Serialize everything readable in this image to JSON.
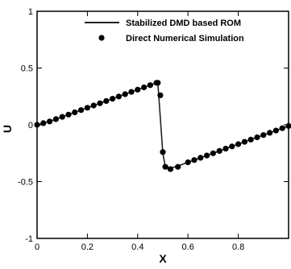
{
  "chart_data": {
    "type": "line",
    "title": "",
    "xlabel": "X",
    "ylabel": "U",
    "xlim": [
      0,
      1
    ],
    "ylim": [
      -1,
      1
    ],
    "x_ticks": [
      0,
      0.2,
      0.4,
      0.6,
      0.8
    ],
    "x_tick_labels": [
      "0",
      "0.2",
      "0.4",
      "0.6",
      "0.8"
    ],
    "y_ticks": [
      -1,
      -0.5,
      0,
      0.5,
      1
    ],
    "y_tick_labels": [
      "-1",
      "-0.5",
      "0",
      "0.5",
      "1"
    ],
    "grid": false,
    "legend_position": "top-right",
    "series": [
      {
        "name": "Stabilized DMD based ROM",
        "style": "line",
        "color": "#222222",
        "x": [
          0,
          0.025,
          0.05,
          0.075,
          0.1,
          0.125,
          0.15,
          0.175,
          0.2,
          0.225,
          0.25,
          0.275,
          0.3,
          0.325,
          0.35,
          0.375,
          0.4,
          0.425,
          0.45,
          0.475,
          0.48,
          0.5,
          0.51,
          0.53,
          0.55,
          0.575,
          0.6,
          0.625,
          0.65,
          0.675,
          0.7,
          0.725,
          0.75,
          0.775,
          0.8,
          0.825,
          0.85,
          0.875,
          0.9,
          0.925,
          0.95,
          0.975,
          1.0
        ],
        "y": [
          0,
          0.015,
          0.03,
          0.05,
          0.07,
          0.09,
          0.11,
          0.13,
          0.15,
          0.17,
          0.19,
          0.21,
          0.23,
          0.25,
          0.27,
          0.29,
          0.31,
          0.33,
          0.35,
          0.37,
          0.37,
          -0.25,
          -0.37,
          -0.38,
          -0.37,
          -0.35,
          -0.33,
          -0.31,
          -0.29,
          -0.27,
          -0.25,
          -0.23,
          -0.21,
          -0.19,
          -0.17,
          -0.15,
          -0.13,
          -0.11,
          -0.09,
          -0.07,
          -0.05,
          -0.03,
          -0.01
        ]
      },
      {
        "name": "Direct Numerical Simulation",
        "style": "markers",
        "color": "#000000",
        "x": [
          0,
          0.025,
          0.05,
          0.075,
          0.1,
          0.125,
          0.15,
          0.175,
          0.2,
          0.225,
          0.25,
          0.275,
          0.3,
          0.325,
          0.35,
          0.375,
          0.4,
          0.425,
          0.45,
          0.475,
          0.48,
          0.49,
          0.5,
          0.51,
          0.53,
          0.56,
          0.6,
          0.625,
          0.65,
          0.675,
          0.7,
          0.725,
          0.75,
          0.775,
          0.8,
          0.825,
          0.85,
          0.875,
          0.9,
          0.925,
          0.95,
          0.975,
          1.0
        ],
        "y": [
          0,
          0.015,
          0.03,
          0.05,
          0.07,
          0.09,
          0.11,
          0.13,
          0.15,
          0.17,
          0.19,
          0.21,
          0.23,
          0.25,
          0.27,
          0.29,
          0.31,
          0.33,
          0.35,
          0.37,
          0.37,
          0.26,
          -0.24,
          -0.37,
          -0.39,
          -0.37,
          -0.33,
          -0.31,
          -0.29,
          -0.27,
          -0.25,
          -0.23,
          -0.21,
          -0.19,
          -0.17,
          -0.15,
          -0.13,
          -0.11,
          -0.09,
          -0.07,
          -0.05,
          -0.03,
          -0.01
        ]
      }
    ]
  }
}
